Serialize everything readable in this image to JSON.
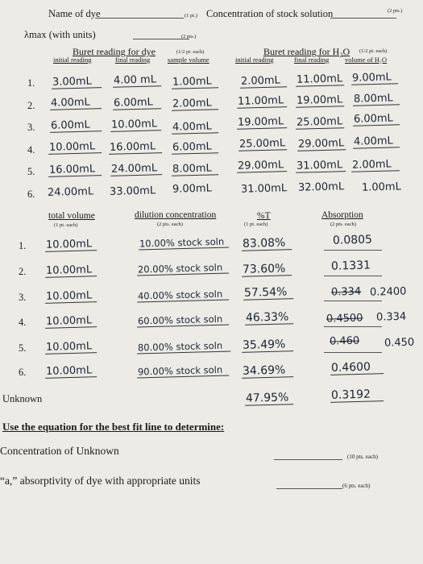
{
  "header": {
    "name_label": "Name of dye",
    "name_pts": "(1 pt.)",
    "conc_label": "Concentration of stock solution",
    "conc_pts": "(2 pts.)",
    "lambda_label": "λmax (with units)",
    "lambda_pts": "(2 pts.)"
  },
  "buret_dye": {
    "title": "Buret reading for dye",
    "pts": "(1/2 pt. each)",
    "cols": [
      "initial reading",
      "final reading",
      "sample volume"
    ]
  },
  "buret_water": {
    "title": "Buret reading for H₂O",
    "pts": "(1/2 pt. each)",
    "cols": [
      "initial reading",
      "final reading",
      "volume of H₂O"
    ]
  },
  "row_numbers": [
    "1.",
    "2.",
    "3.",
    "4.",
    "5.",
    "6."
  ],
  "dye_rows": [
    [
      "3.00mL",
      "4.00 mL",
      "1.00mL"
    ],
    [
      "4.00mL",
      "6.00mL",
      "2.00mL"
    ],
    [
      "6.00mL",
      "10.00mL",
      "4.00mL"
    ],
    [
      "10.00mL",
      "16.00mL",
      "6.00mL"
    ],
    [
      "16.00mL",
      "24.00mL",
      "8.00mL"
    ],
    [
      "24.00mL",
      "33.00mL",
      "9.00mL"
    ]
  ],
  "water_rows": [
    [
      "2.00mL",
      "11.00mL",
      "9.00mL"
    ],
    [
      "11.00mL",
      "19.00mL",
      "8.00mL"
    ],
    [
      "19.00mL",
      "25.00mL",
      "6.00mL"
    ],
    [
      "25.00mL",
      "29.00mL",
      "4.00mL"
    ],
    [
      "29.00mL",
      "31.00mL",
      "2.00mL"
    ],
    [
      "31.00mL",
      "32.00mL",
      "1.00mL"
    ]
  ],
  "results": {
    "headers": {
      "total": "total volume",
      "total_pts": "(1 pt. each)",
      "dilution": "dilution concentration",
      "dilution_pts": "(2 pts. each)",
      "pct_t": "%T",
      "pct_t_pts": "(1 pt. each)",
      "absorption": "Absorption",
      "absorption_pts": "(2 pts. each)"
    },
    "rows": [
      {
        "total": "10.00mL",
        "dilution": "10.00% stock soln",
        "pct_t": "83.08%",
        "abs": "0.0805",
        "abs_struck": "",
        "abs_extra": ""
      },
      {
        "total": "10.00mL",
        "dilution": "20.00% stock soln",
        "pct_t": "73.60%",
        "abs": "0.1331",
        "abs_struck": "",
        "abs_extra": ""
      },
      {
        "total": "10.00mL",
        "dilution": "40.00% stock soln",
        "pct_t": "57.54%",
        "abs": "",
        "abs_struck": "0.334",
        "abs_extra": "0.2400"
      },
      {
        "total": "10.00mL",
        "dilution": "60.00% stock soln",
        "pct_t": "46.33%",
        "abs": "",
        "abs_struck": "0.4500",
        "abs_extra": "0.334"
      },
      {
        "total": "10.00mL",
        "dilution": "80.00% stock soln",
        "pct_t": "35.49%",
        "abs": "",
        "abs_struck": "0.460",
        "abs_extra": "0.450"
      },
      {
        "total": "10.00mL",
        "dilution": "90.00% stock soln",
        "pct_t": "34.69%",
        "abs": "0.4600",
        "abs_struck": "",
        "abs_extra": ""
      }
    ],
    "unknown": {
      "label": "Unknown",
      "pct_t": "47.95%",
      "abs": "0.3192"
    }
  },
  "footer": {
    "instruction": "Use the equation for the best fit line to determine:",
    "conc_unknown": "Concentration of Unknown",
    "conc_unknown_pts": "(10 pts. each)",
    "absorptivity": "“a,” absorptivity of dye with appropriate units",
    "absorptivity_pts": "(6 pts. each)"
  }
}
